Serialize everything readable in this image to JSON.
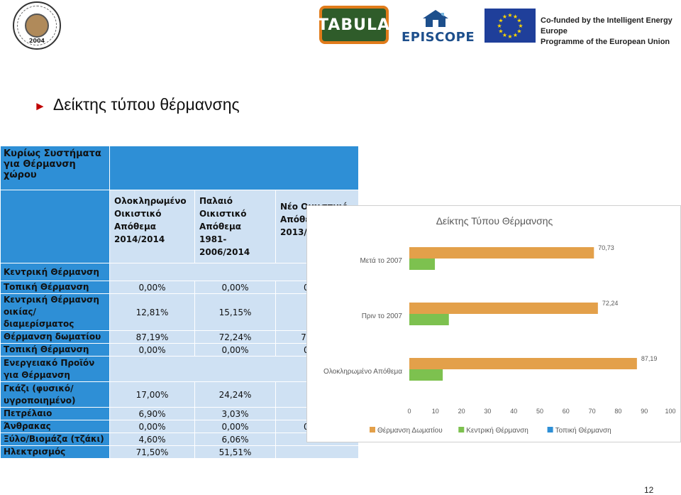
{
  "logos": {
    "university_year": "2004",
    "tabula": "TABULA",
    "episcope": "EPISCOPE",
    "eu_text_line1": "Co-funded by the Intelligent Energy Europe",
    "eu_text_line2": "Programme of the European Union"
  },
  "heading": "Δείκτης τύπου θέρμανσης",
  "table": {
    "title": "Κυρίως Συστήματα για Θέρμανση χώρου",
    "columns": [
      "Ολοκληρωμένο Οικιστικό Απόθεμα 2014/2014",
      "Παλαιό Οικιστικό Απόθεμα 1981-2006/2014",
      "Νέο Οικιστικό Απόθεμα 2013/2014"
    ],
    "rows": [
      {
        "label": "Κεντρική Θέρμανση",
        "section": true,
        "values": [
          "",
          "",
          ""
        ]
      },
      {
        "label": "Τοπική Θέρμανση",
        "values": [
          "0,00%",
          "0,00%",
          "0,00%"
        ]
      },
      {
        "label": "Κεντρική Θέρμανση οικίας/διαμερίσματος",
        "values": [
          "12,81%",
          "15,15%",
          ""
        ]
      },
      {
        "label": "Θέρμανση δωματίου",
        "values": [
          "87,19%",
          "72,24%",
          "70,73%"
        ]
      },
      {
        "label": "Τοπική Θέρμανση",
        "values": [
          "0,00%",
          "0,00%",
          "0,00%"
        ]
      },
      {
        "label": "Ενεργειακό Προϊόν για Θέρμανση",
        "section": true,
        "values": [
          "",
          "",
          ""
        ]
      },
      {
        "label": "Γκάζι (φυσικό/υγροποιημένο)",
        "values": [
          "17,00%",
          "24,24%",
          ""
        ]
      },
      {
        "label": "Πετρέλαιο",
        "values": [
          "6,90%",
          "3,03%",
          ""
        ]
      },
      {
        "label": "Άνθρακας",
        "values": [
          "0,00%",
          "0,00%",
          "0,00%"
        ]
      },
      {
        "label": "Ξύλο/Βιομάζα (τζάκι)",
        "values": [
          "4,60%",
          "6,06%",
          ""
        ]
      },
      {
        "label": "Ηλεκτρισμός",
        "values": [
          "71,50%",
          "51,51%",
          ""
        ]
      }
    ]
  },
  "chart_data": {
    "type": "bar",
    "orientation": "horizontal",
    "title": "Δείκτης Τύπου Θέρμανσης",
    "categories": [
      "Μετά το 2007",
      "Πριν το 2007",
      "Ολοκληρωμένο Απόθεμα"
    ],
    "series": [
      {
        "name": "Θέρμανση Δωματίου",
        "color": "#e3a04a",
        "values": [
          70.73,
          72.24,
          87.19
        ]
      },
      {
        "name": "Κεντρική Θέρμανση",
        "color": "#7dc14f",
        "values": [
          9.8,
          15.15,
          12.81
        ]
      },
      {
        "name": "Τοπική Θέρμανση",
        "color": "#2e8fd6",
        "values": [
          0,
          0,
          0
        ]
      }
    ],
    "data_labels": [
      "70,73",
      "72,24",
      "87,19"
    ],
    "xlim": [
      0,
      100
    ],
    "xticks": [
      "0",
      "10",
      "20",
      "30",
      "40",
      "50",
      "60",
      "70",
      "80",
      "90",
      "100"
    ],
    "legend": "bottom"
  },
  "page_number": "12"
}
